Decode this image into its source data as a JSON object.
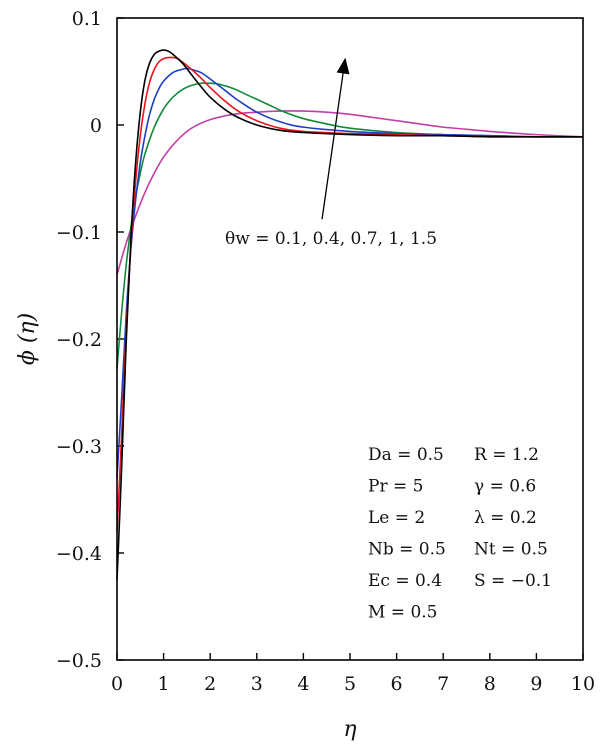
{
  "chart_data": {
    "type": "line",
    "title": "",
    "xlabel": "η",
    "ylabel": "ϕ (η)",
    "xlim": [
      0,
      10
    ],
    "ylim": [
      -0.5,
      0.1
    ],
    "xticks": [
      0,
      1,
      2,
      3,
      4,
      5,
      6,
      7,
      8,
      9,
      10
    ],
    "xtick_labels": [
      "0",
      "1",
      "2",
      "3",
      "4",
      "5",
      "6",
      "7",
      "8",
      "9",
      "10"
    ],
    "yticks": [
      -0.5,
      -0.4,
      -0.3,
      -0.2,
      -0.1,
      0,
      0.1
    ],
    "ytick_labels": [
      "−0.5",
      "−0.4",
      "−0.3",
      "−0.2",
      "−0.1",
      "0",
      "0.1"
    ],
    "grid": false,
    "series": [
      {
        "color": "#000000",
        "x": [
          0,
          0.1,
          0.2,
          0.3,
          0.4,
          0.5,
          0.6,
          0.7,
          0.8,
          0.9,
          1.0,
          1.1,
          1.2,
          1.4,
          1.6,
          1.8,
          2.0,
          2.3,
          2.6,
          3.0,
          3.5,
          4.0,
          5.0,
          6.0,
          7.0,
          8.0,
          9.0,
          10.0
        ],
        "y": [
          -0.425,
          -0.32,
          -0.2,
          -0.105,
          -0.035,
          0.012,
          0.042,
          0.058,
          0.066,
          0.069,
          0.07,
          0.069,
          0.066,
          0.058,
          0.047,
          0.036,
          0.026,
          0.015,
          0.007,
          0.0,
          -0.005,
          -0.007,
          -0.009,
          -0.01,
          -0.01,
          -0.011,
          -0.011,
          -0.011
        ]
      },
      {
        "color": "#e8141c",
        "x": [
          0,
          0.1,
          0.2,
          0.3,
          0.4,
          0.5,
          0.6,
          0.7,
          0.8,
          0.9,
          1.0,
          1.1,
          1.2,
          1.3,
          1.4,
          1.6,
          1.8,
          2.0,
          2.3,
          2.6,
          3.0,
          3.5,
          4.0,
          5.0,
          6.0,
          7.0,
          8.0,
          9.0,
          10.0
        ],
        "y": [
          -0.38,
          -0.29,
          -0.19,
          -0.11,
          -0.052,
          -0.01,
          0.02,
          0.04,
          0.052,
          0.059,
          0.062,
          0.063,
          0.063,
          0.062,
          0.059,
          0.052,
          0.044,
          0.035,
          0.023,
          0.013,
          0.004,
          -0.003,
          -0.006,
          -0.008,
          -0.009,
          -0.01,
          -0.011,
          -0.011,
          -0.011
        ]
      },
      {
        "color": "#1f3fbf",
        "x": [
          0,
          0.1,
          0.2,
          0.3,
          0.4,
          0.5,
          0.6,
          0.7,
          0.8,
          0.9,
          1.0,
          1.2,
          1.4,
          1.5,
          1.6,
          1.8,
          2.0,
          2.3,
          2.6,
          3.0,
          3.5,
          4.0,
          5.0,
          6.0,
          7.0,
          8.0,
          9.0,
          10.0
        ],
        "y": [
          -0.33,
          -0.255,
          -0.175,
          -0.115,
          -0.07,
          -0.035,
          -0.01,
          0.01,
          0.024,
          0.034,
          0.041,
          0.049,
          0.052,
          0.053,
          0.052,
          0.049,
          0.043,
          0.033,
          0.023,
          0.012,
          0.003,
          -0.002,
          -0.006,
          -0.008,
          -0.009,
          -0.01,
          -0.011,
          -0.011
        ]
      },
      {
        "color": "#138a3a",
        "x": [
          0,
          0.1,
          0.2,
          0.3,
          0.4,
          0.5,
          0.6,
          0.8,
          1.0,
          1.2,
          1.4,
          1.6,
          1.8,
          2.0,
          2.2,
          2.5,
          2.8,
          3.2,
          3.6,
          4.0,
          4.5,
          5.0,
          6.0,
          7.0,
          8.0,
          9.0,
          10.0
        ],
        "y": [
          -0.228,
          -0.175,
          -0.13,
          -0.095,
          -0.067,
          -0.045,
          -0.027,
          -0.002,
          0.015,
          0.026,
          0.033,
          0.037,
          0.039,
          0.039,
          0.038,
          0.034,
          0.028,
          0.02,
          0.012,
          0.006,
          0.001,
          -0.003,
          -0.007,
          -0.009,
          -0.01,
          -0.011,
          -0.011
        ]
      },
      {
        "color": "#c23fa8",
        "x": [
          0,
          0.2,
          0.4,
          0.6,
          0.8,
          1.0,
          1.3,
          1.6,
          2.0,
          2.5,
          3.0,
          3.5,
          4.0,
          4.5,
          5.0,
          5.5,
          6.0,
          6.5,
          7.0,
          7.5,
          8.0,
          9.0,
          10.0
        ],
        "y": [
          -0.14,
          -0.11,
          -0.085,
          -0.063,
          -0.045,
          -0.03,
          -0.014,
          -0.003,
          0.005,
          0.01,
          0.012,
          0.013,
          0.013,
          0.012,
          0.01,
          0.007,
          0.004,
          0.001,
          -0.002,
          -0.004,
          -0.006,
          -0.009,
          -0.011
        ]
      }
    ],
    "annotation": {
      "text": "θw = 0.1, 0.4, 0.7, 1, 1.5",
      "arrow_from": [
        4.4,
        -0.088
      ],
      "arrow_to": [
        4.9,
        0.063
      ]
    },
    "parameters": [
      [
        "Da = 0.5",
        "R = 1.2"
      ],
      [
        "Pr = 5",
        "γ = 0.6"
      ],
      [
        "Le = 2",
        "λ = 0.2"
      ],
      [
        "Nb = 0.5",
        "Nt = 0.5"
      ],
      [
        "Ec = 0.4",
        "S = −0.1"
      ],
      [
        "M = 0.5",
        ""
      ]
    ]
  }
}
